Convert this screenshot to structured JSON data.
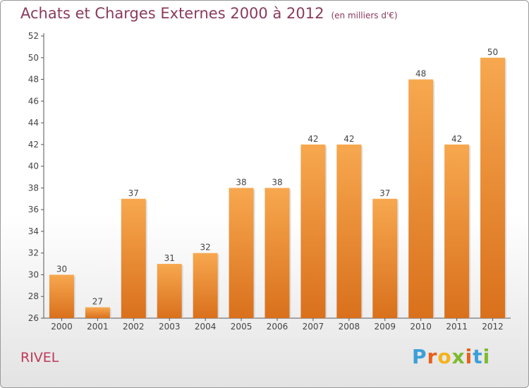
{
  "header": {
    "title": "Achats et Charges Externes 2000 à 2012",
    "unit": "(en milliers d'€)"
  },
  "footer": {
    "commune": "RIVEL",
    "logo_text": "Proxiti",
    "logo_colors": [
      "#3aa0d8",
      "#e8601c",
      "#f5b21a",
      "#7dbb2e",
      "#e8601c",
      "#3aa0d8",
      "#7dbb2e"
    ]
  },
  "chart_data": {
    "type": "bar",
    "title": "Achats et Charges Externes 2000 à 2012",
    "subtitle": "(en milliers d'€)",
    "categories": [
      "2000",
      "2001",
      "2002",
      "2003",
      "2004",
      "2005",
      "2006",
      "2007",
      "2008",
      "2009",
      "2010",
      "2011",
      "2012"
    ],
    "values": [
      30,
      27,
      37,
      31,
      32,
      38,
      38,
      42,
      42,
      37,
      48,
      42,
      50
    ],
    "ylim": [
      26,
      52
    ],
    "yticks": [
      26,
      28,
      30,
      32,
      34,
      36,
      38,
      40,
      42,
      44,
      46,
      48,
      50,
      52
    ],
    "grid": false,
    "legend": "none",
    "colors": {
      "bar_light": "#f7a84f",
      "bar_dark": "#d9701c",
      "axis": "#555555",
      "label": "#444444"
    }
  }
}
